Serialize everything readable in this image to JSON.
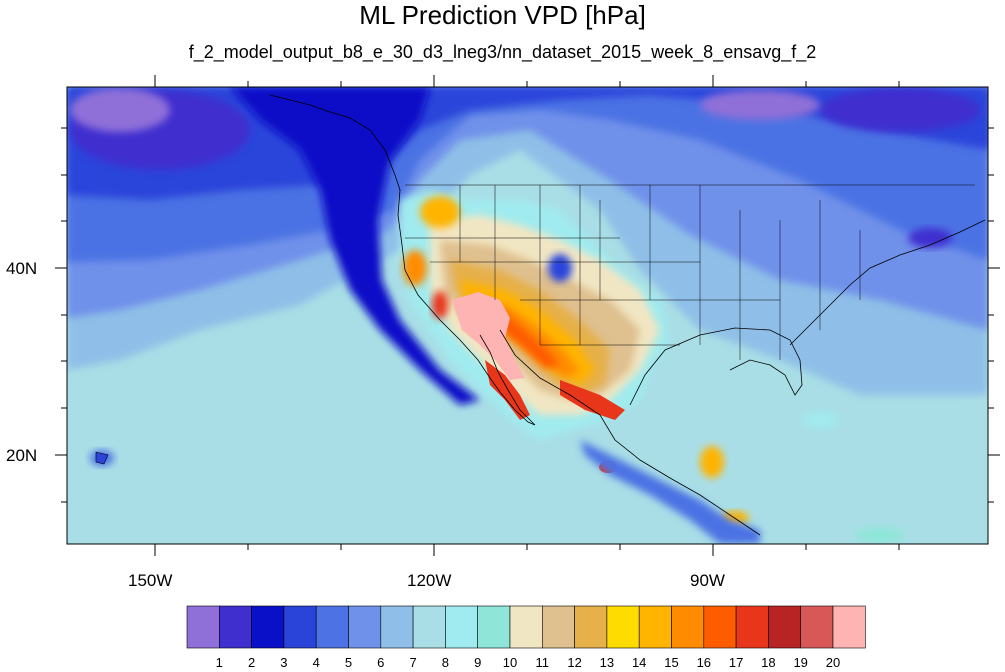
{
  "title": "ML Prediction VPD [hPa]",
  "subtitle": "f_2_model_output_b8_e_30_d3_lneg3/nn_dataset_2015_week_8_ensavg_f_2",
  "x_axis": {
    "ticks": [
      "150W",
      "120W",
      "90W"
    ]
  },
  "y_axis": {
    "ticks": [
      "40N",
      "20N"
    ]
  },
  "colorbar": {
    "labels": [
      "1",
      "2",
      "3",
      "4",
      "5",
      "6",
      "7",
      "8",
      "9",
      "10",
      "11",
      "12",
      "13",
      "14",
      "15",
      "16",
      "17",
      "18",
      "19",
      "20"
    ],
    "colors": [
      "#8f6fd8",
      "#3f2fcf",
      "#0a10c8",
      "#2a44da",
      "#4c72e4",
      "#6f91ea",
      "#8fbfe8",
      "#a9dee6",
      "#a0ebef",
      "#8fe6d8",
      "#f1e6c3",
      "#dfc08f",
      "#e6b04a",
      "#ffdc00",
      "#ffb400",
      "#ff8c00",
      "#ff5c00",
      "#e8361a",
      "#b82424",
      "#d85858",
      "#ffb4b4"
    ]
  }
}
